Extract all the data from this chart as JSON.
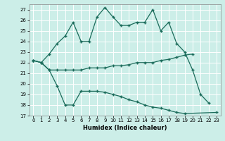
{
  "xlabel": "Humidex (Indice chaleur)",
  "xlim": [
    -0.5,
    23.5
  ],
  "ylim": [
    17,
    27.5
  ],
  "yticks": [
    17,
    18,
    19,
    20,
    21,
    22,
    23,
    24,
    25,
    26,
    27
  ],
  "xticks": [
    0,
    1,
    2,
    3,
    4,
    5,
    6,
    7,
    8,
    9,
    10,
    11,
    12,
    13,
    14,
    15,
    16,
    17,
    18,
    19,
    20,
    21,
    22,
    23
  ],
  "background_color": "#cceee8",
  "grid_color": "#ffffff",
  "line_color": "#1a6b5a",
  "line1_y": [
    22.2,
    22.0,
    22.8,
    23.8,
    24.5,
    25.8,
    24.0,
    24.0,
    26.3,
    27.2,
    26.3,
    25.5,
    25.5,
    25.8,
    25.8,
    27.0,
    25.0,
    25.8,
    23.8,
    23.0,
    21.3,
    19.0,
    18.2,
    null
  ],
  "line2_y": [
    22.2,
    22.0,
    21.3,
    21.3,
    21.3,
    21.3,
    21.3,
    21.5,
    21.5,
    21.5,
    21.7,
    21.7,
    21.8,
    22.0,
    22.0,
    22.0,
    22.2,
    22.3,
    22.5,
    22.7,
    22.8,
    null,
    null,
    null
  ],
  "line3_y": [
    22.2,
    22.0,
    21.3,
    19.8,
    18.0,
    18.0,
    19.3,
    19.3,
    19.3,
    19.2,
    19.0,
    18.8,
    18.5,
    18.3,
    18.0,
    17.8,
    17.7,
    17.5,
    17.3,
    17.2,
    null,
    null,
    null,
    17.3
  ]
}
